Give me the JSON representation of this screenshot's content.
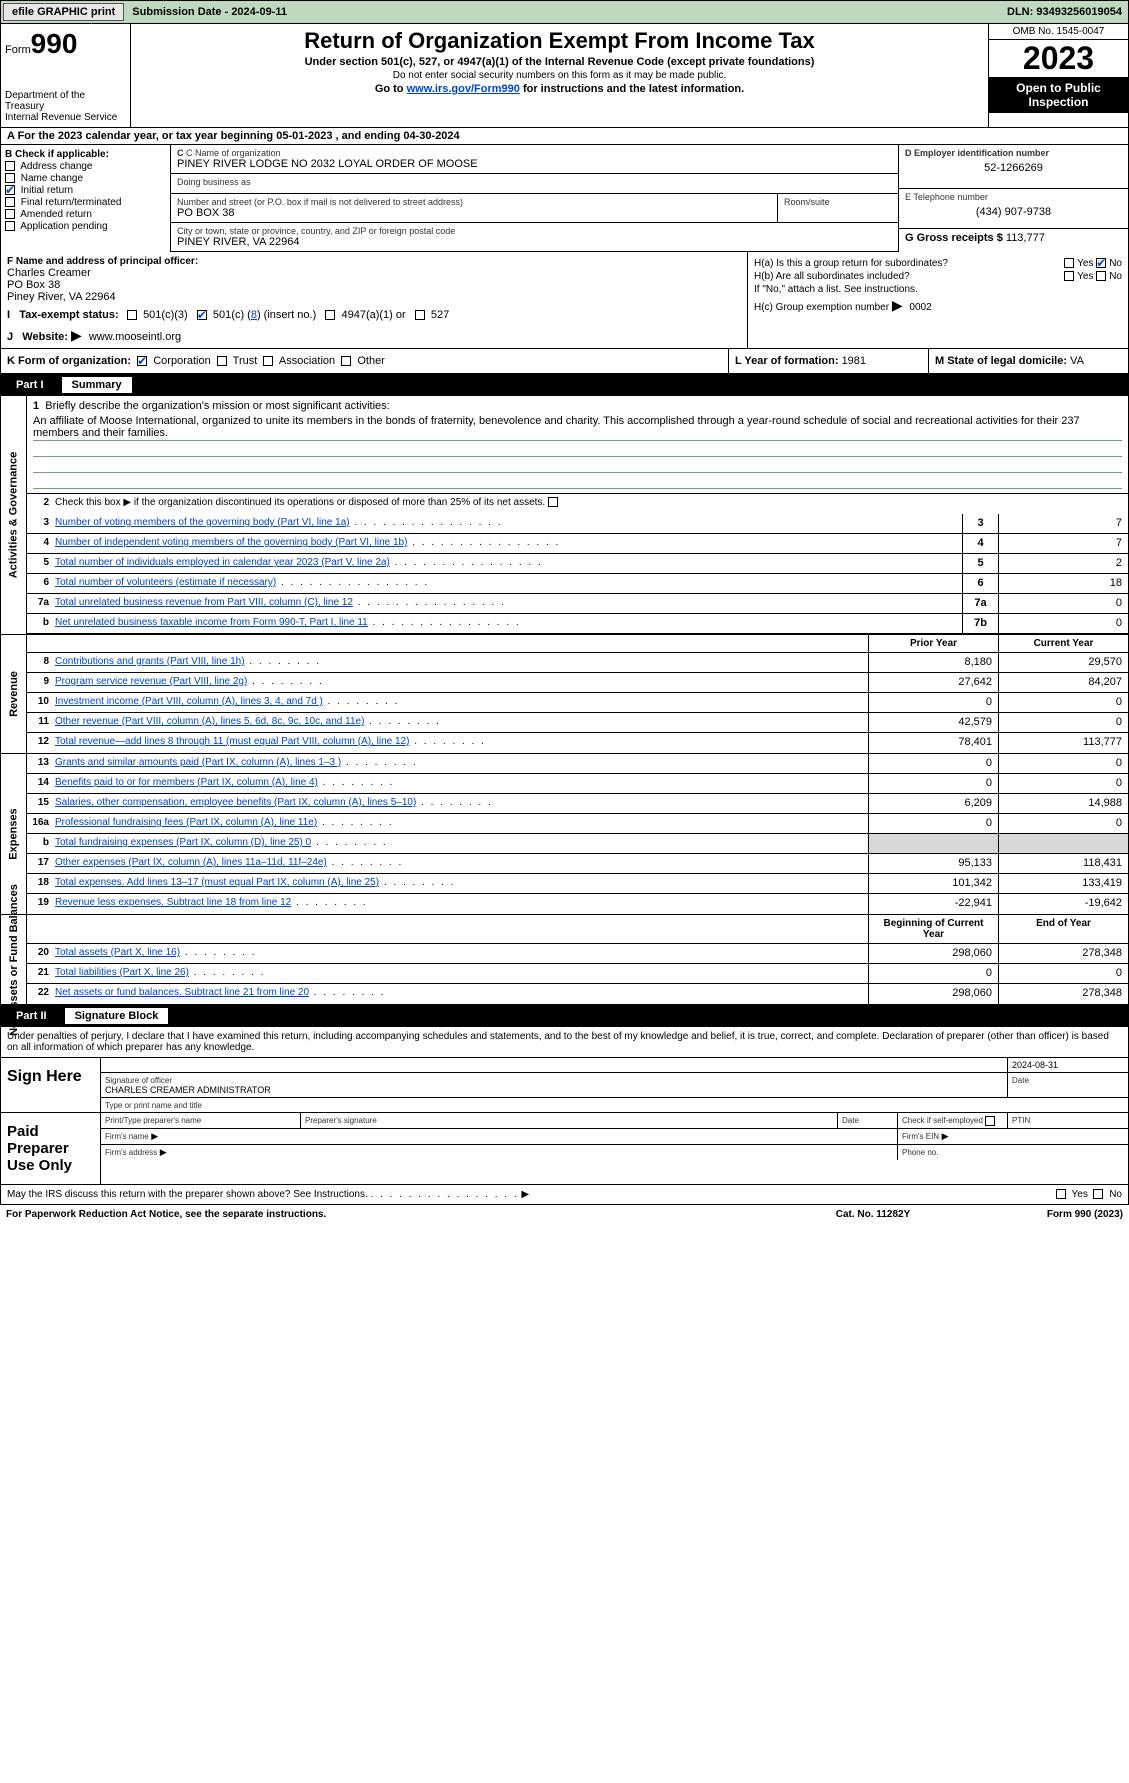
{
  "topbar": {
    "efile_btn": "efile GRAPHIC print",
    "submission_label": "Submission Date - 2024-09-11",
    "dln_label": "DLN: 93493256019054"
  },
  "header": {
    "form_prefix": "Form",
    "form_number": "990",
    "title": "Return of Organization Exempt From Income Tax",
    "subtitle": "Under section 501(c), 527, or 4947(a)(1) of the Internal Revenue Code (except private foundations)",
    "warning": "Do not enter social security numbers on this form as it may be made public.",
    "goto_prefix": "Go to ",
    "goto_link": "www.irs.gov/Form990",
    "goto_suffix": " for instructions and the latest information.",
    "dept": "Department of the Treasury",
    "irs": "Internal Revenue Service",
    "omb": "OMB No. 1545-0047",
    "year": "2023",
    "inspection": "Open to Public Inspection"
  },
  "row_a": {
    "prefix": "A For the 2023 calendar year, or tax year beginning ",
    "begin": "05-01-2023",
    "mid": " , and ending ",
    "end": "04-30-2024"
  },
  "box_b": {
    "header": "B Check if applicable:",
    "items": [
      "Address change",
      "Name change",
      "Initial return",
      "Final return/terminated",
      "Amended return",
      "Application pending"
    ],
    "checked_index": 2
  },
  "box_c": {
    "name_label": "C Name of organization",
    "name": "PINEY RIVER LODGE NO 2032 LOYAL ORDER OF MOOSE",
    "dba_label": "Doing business as",
    "dba": "",
    "addr_label": "Number and street (or P.O. box if mail is not delivered to street address)",
    "addr": "PO BOX 38",
    "room_label": "Room/suite",
    "room": "",
    "city_label": "City or town, state or province, country, and ZIP or foreign postal code",
    "city": "PINEY RIVER, VA  22964"
  },
  "box_d": {
    "label": "D Employer identification number",
    "value": "52-1266269"
  },
  "box_e": {
    "label": "E Telephone number",
    "value": "(434) 907-9738"
  },
  "box_g": {
    "label": "G Gross receipts $ ",
    "value": "113,777"
  },
  "box_f": {
    "label": "F  Name and address of principal officer:",
    "name": "Charles Creamer",
    "addr1": "PO Box 38",
    "addr2": "Piney River, VA  22964"
  },
  "box_h": {
    "ha_label": "H(a)  Is this a group return for subordinates?",
    "hb_label": "H(b)  Are all subordinates included?",
    "hb_note": "If \"No,\" attach a list. See instructions.",
    "hc_label": "H(c)  Group exemption number ",
    "hc_value": "0002",
    "yes": "Yes",
    "no": "No",
    "arrow": "▶"
  },
  "box_i": {
    "label": "Tax-exempt status:",
    "opt1": "501(c)(3)",
    "opt2_prefix": "501(c) (",
    "opt2_val": "8",
    "opt2_suffix": ") (insert no.)",
    "opt3": "4947(a)(1) or",
    "opt4": "527"
  },
  "box_j": {
    "label": "Website: ",
    "arrow": "▶",
    "value": "www.mooseintl.org"
  },
  "box_k": {
    "label": "K Form of organization:",
    "opts": [
      "Corporation",
      "Trust",
      "Association",
      "Other"
    ],
    "checked": 0,
    "l_label": "L Year of formation: ",
    "l_value": "1981",
    "m_label": "M State of legal domicile: ",
    "m_value": "VA"
  },
  "part1": {
    "num": "Part I",
    "title": "Summary",
    "vert_ag": "Activities & Governance",
    "vert_rev": "Revenue",
    "vert_exp": "Expenses",
    "vert_net": "Net Assets or Fund Balances",
    "line1_label": "Briefly describe the organization's mission or most significant activities:",
    "line1_text": "An affiliate of Moose International, organized to unite its members in the bonds of fraternity, benevolence and charity. This accomplished through a year-round schedule of social and recreational activities for their 237 members and their families.",
    "line2": "Check this box ▶    if the organization discontinued its operations or disposed of more than 25% of its net assets.",
    "lines_ag": [
      {
        "n": "3",
        "d": "Number of voting members of the governing body (Part VI, line 1a)",
        "box": "3",
        "v": "7"
      },
      {
        "n": "4",
        "d": "Number of independent voting members of the governing body (Part VI, line 1b)",
        "box": "4",
        "v": "7"
      },
      {
        "n": "5",
        "d": "Total number of individuals employed in calendar year 2023 (Part V, line 2a)",
        "box": "5",
        "v": "2"
      },
      {
        "n": "6",
        "d": "Total number of volunteers (estimate if necessary)",
        "box": "6",
        "v": "18"
      },
      {
        "n": "7a",
        "d": "Total unrelated business revenue from Part VIII, column (C), line 12",
        "box": "7a",
        "v": "0"
      },
      {
        "n": "b",
        "d": "Net unrelated business taxable income from Form 990-T, Part I, line 11",
        "box": "7b",
        "v": "0"
      }
    ],
    "hdr_prior": "Prior Year",
    "hdr_current": "Current Year",
    "lines_rev": [
      {
        "n": "8",
        "d": "Contributions and grants (Part VIII, line 1h)",
        "p": "8,180",
        "c": "29,570"
      },
      {
        "n": "9",
        "d": "Program service revenue (Part VIII, line 2g)",
        "p": "27,642",
        "c": "84,207"
      },
      {
        "n": "10",
        "d": "Investment income (Part VIII, column (A), lines 3, 4, and 7d )",
        "p": "0",
        "c": "0"
      },
      {
        "n": "11",
        "d": "Other revenue (Part VIII, column (A), lines 5, 6d, 8c, 9c, 10c, and 11e)",
        "p": "42,579",
        "c": "0"
      },
      {
        "n": "12",
        "d": "Total revenue—add lines 8 through 11 (must equal Part VIII, column (A), line 12)",
        "p": "78,401",
        "c": "113,777"
      }
    ],
    "lines_exp": [
      {
        "n": "13",
        "d": "Grants and similar amounts paid (Part IX, column (A), lines 1–3 )",
        "p": "0",
        "c": "0"
      },
      {
        "n": "14",
        "d": "Benefits paid to or for members (Part IX, column (A), line 4)",
        "p": "0",
        "c": "0"
      },
      {
        "n": "15",
        "d": "Salaries, other compensation, employee benefits (Part IX, column (A), lines 5–10)",
        "p": "6,209",
        "c": "14,988"
      },
      {
        "n": "16a",
        "d": "Professional fundraising fees (Part IX, column (A), line 11e)",
        "p": "0",
        "c": "0"
      },
      {
        "n": "b",
        "d": "Total fundraising expenses (Part IX, column (D), line 25) 0",
        "p": "shaded",
        "c": "shaded"
      },
      {
        "n": "17",
        "d": "Other expenses (Part IX, column (A), lines 11a–11d, 11f–24e)",
        "p": "95,133",
        "c": "118,431"
      },
      {
        "n": "18",
        "d": "Total expenses. Add lines 13–17 (must equal Part IX, column (A), line 25)",
        "p": "101,342",
        "c": "133,419"
      },
      {
        "n": "19",
        "d": "Revenue less expenses. Subtract line 18 from line 12",
        "p": "-22,941",
        "c": "-19,642"
      }
    ],
    "hdr_begin": "Beginning of Current Year",
    "hdr_end": "End of Year",
    "lines_net": [
      {
        "n": "20",
        "d": "Total assets (Part X, line 16)",
        "p": "298,060",
        "c": "278,348"
      },
      {
        "n": "21",
        "d": "Total liabilities (Part X, line 26)",
        "p": "0",
        "c": "0"
      },
      {
        "n": "22",
        "d": "Net assets or fund balances. Subtract line 21 from line 20",
        "p": "298,060",
        "c": "278,348"
      }
    ]
  },
  "part2": {
    "num": "Part II",
    "title": "Signature Block",
    "intro": "Under penalties of perjury, I declare that I have examined this return, including accompanying schedules and statements, and to the best of my knowledge and belief, it is true, correct, and complete. Declaration of preparer (other than officer) is based on all information of which preparer has any knowledge."
  },
  "sign": {
    "label": "Sign Here",
    "sig_officer": "Signature of officer",
    "date": "2024-08-31",
    "date_lbl": "Date",
    "name": "CHARLES CREAMER  ADMINISTRATOR",
    "name_lbl": "Type or print name and title"
  },
  "preparer": {
    "label": "Paid Preparer Use Only",
    "print_name": "Print/Type preparer's name",
    "sig": "Preparer's signature",
    "date": "Date",
    "check": "Check      if self-employed",
    "ptin": "PTIN",
    "firm_name": "Firm's name",
    "firm_ein": "Firm's EIN",
    "firm_addr": "Firm's address",
    "phone": "Phone no."
  },
  "footer": {
    "discuss": "May the IRS discuss this return with the preparer shown above? See Instructions.",
    "yes": "Yes",
    "no": "No",
    "paperwork": "For Paperwork Reduction Act Notice, see the separate instructions.",
    "cat": "Cat. No. 11282Y",
    "form": "Form 990 (2023)"
  }
}
